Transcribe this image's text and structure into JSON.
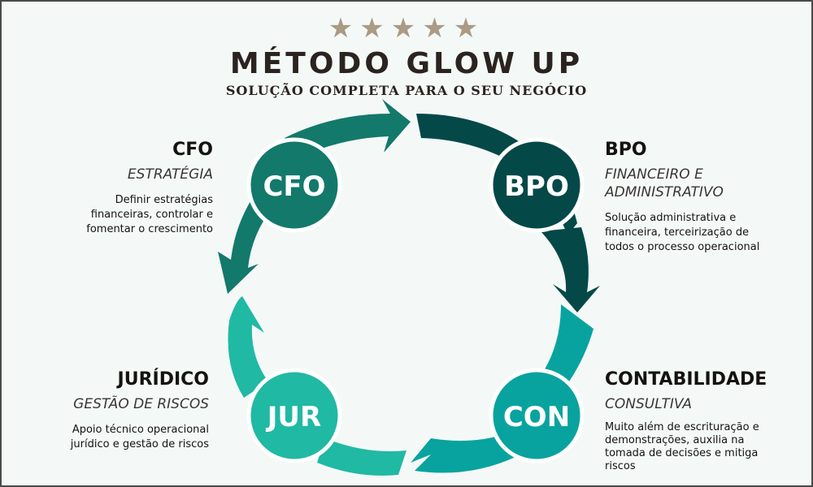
{
  "header": {
    "stars": "★★★★★",
    "title": "MÉTODO GLOW UP",
    "subtitle": "SOLUÇÃO COMPLETA PARA O SEU NEGÓCIO"
  },
  "colors": {
    "cfo": "#13796b",
    "bpo": "#044848",
    "con": "#08a39f",
    "jur": "#20b9a4",
    "star": "#ab9a84",
    "background": "#f4f9f8"
  },
  "nodes": [
    {
      "id": "cfo",
      "label": "CFO"
    },
    {
      "id": "bpo",
      "label": "BPO"
    },
    {
      "id": "con",
      "label": "CON"
    },
    {
      "id": "jur",
      "label": "JUR"
    }
  ],
  "descriptions": {
    "cfo": {
      "name": "CFO",
      "tag": "ESTRATÉGIA",
      "lines": [
        "Definir estratégias",
        "financeiras, controlar e",
        "fomentar o crescimento"
      ]
    },
    "bpo": {
      "name": "BPO",
      "tag_lines": [
        "FINANCEIRO E",
        "ADMINISTRATIVO"
      ],
      "lines": [
        "Solução administrativa e",
        "financeira, terceirização de",
        "todos o processo operacional"
      ]
    },
    "jur": {
      "name": "JURÍDICO",
      "tag": "GESTÃO DE RISCOS",
      "lines": [
        "Apoio técnico operacional",
        "jurídico e gestão de riscos"
      ]
    },
    "con": {
      "name": "CONTABILIDADE",
      "tag": "CONSULTIVA",
      "lines": [
        "Muito além de escrituração e",
        "demonstrações, auxilia na",
        "tomada de decisões e mitiga",
        "riscos"
      ]
    }
  }
}
